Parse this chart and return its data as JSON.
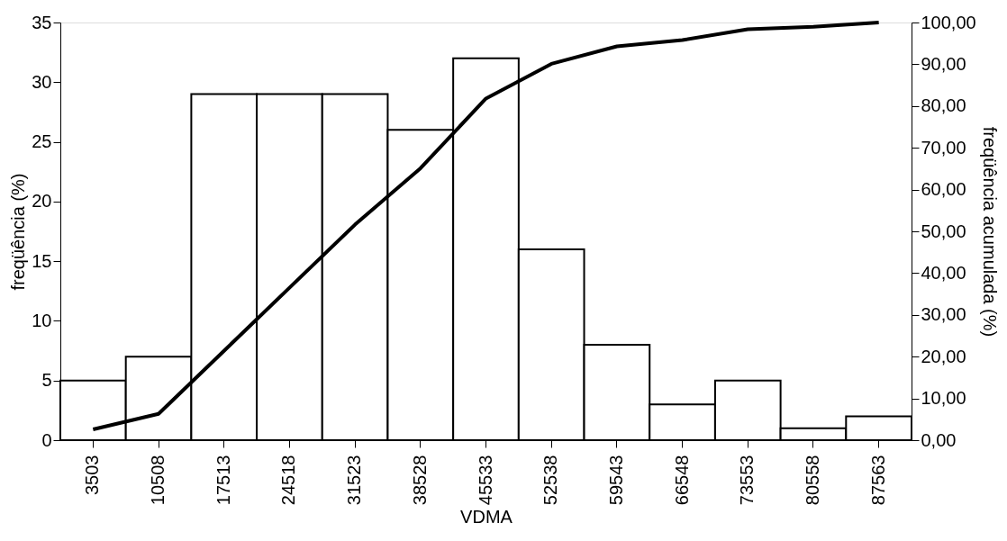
{
  "chart_data": {
    "type": "bar",
    "xlabel": "VDMA",
    "ylabel": "freqüência (%)",
    "y2label": "freqüência acumulada (%)",
    "categories": [
      "3503",
      "10508",
      "17513",
      "24518",
      "31523",
      "38528",
      "45533",
      "52538",
      "59543",
      "66548",
      "73553",
      "80558",
      "87563"
    ],
    "series": [
      {
        "color": "#ffffff",
        "values": [
          5,
          7,
          29,
          29,
          29,
          26,
          32,
          16,
          8,
          3,
          5,
          1,
          2
        ]
      },
      {
        "type": "line",
        "axis": "y2",
        "color": "#000000",
        "values": [
          2.6,
          6.3,
          21.4,
          36.5,
          51.6,
          65.1,
          81.8,
          90.1,
          94.3,
          95.8,
          98.4,
          99.0,
          100
        ]
      }
    ],
    "ylim": [
      0,
      35
    ],
    "yticks": [
      0,
      5,
      10,
      15,
      20,
      25,
      30,
      35
    ],
    "y2lim": [
      0,
      100
    ],
    "y2ticks": [
      {
        "value": 0,
        "label": "0,00"
      },
      {
        "value": 10,
        "label": "10,00"
      },
      {
        "value": 20,
        "label": "20,00"
      },
      {
        "value": 30,
        "label": "30,00"
      },
      {
        "value": 40,
        "label": "40,00"
      },
      {
        "value": 50,
        "label": "50,00"
      },
      {
        "value": 60,
        "label": "60,00"
      },
      {
        "value": 70,
        "label": "70,00"
      },
      {
        "value": 80,
        "label": "80,00"
      },
      {
        "value": 90,
        "label": "90,00"
      },
      {
        "value": 100,
        "label": "100,00"
      }
    ],
    "line_style": "solid"
  }
}
